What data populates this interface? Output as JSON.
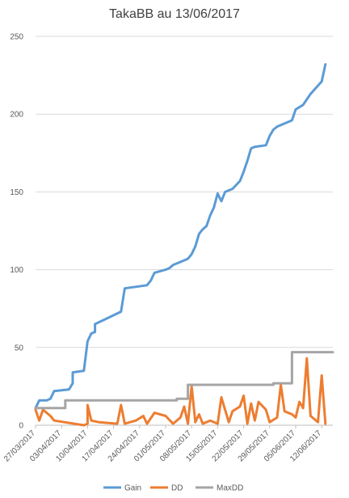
{
  "chart_data": {
    "type": "line",
    "title": "TakaBB au 13/06/2017",
    "xlabel": "",
    "ylabel": "",
    "ylim": [
      0,
      250
    ],
    "y_ticks": [
      0,
      50,
      100,
      150,
      200,
      250
    ],
    "x_range": [
      "2017-03-27",
      "2017-06-15"
    ],
    "x_tick_labels": [
      "27/03/2017",
      "03/04/2017",
      "10/04/2017",
      "17/04/2017",
      "24/04/2017",
      "01/05/2017",
      "08/05/2017",
      "15/05/2017",
      "22/05/2017",
      "29/05/2017",
      "05/06/2017",
      "12/06/2017"
    ],
    "grid": "horizontal",
    "legend_position": "bottom",
    "series": [
      {
        "name": "Gain",
        "color": "#5b9bd5",
        "points": [
          [
            "2017-03-27",
            11
          ],
          [
            "2017-03-28",
            16
          ],
          [
            "2017-03-30",
            16
          ],
          [
            "2017-03-31",
            17
          ],
          [
            "2017-04-01",
            22
          ],
          [
            "2017-04-05",
            23
          ],
          [
            "2017-04-06",
            27
          ],
          [
            "2017-04-06",
            34
          ],
          [
            "2017-04-09",
            35
          ],
          [
            "2017-04-10",
            54
          ],
          [
            "2017-04-11",
            59
          ],
          [
            "2017-04-12",
            60
          ],
          [
            "2017-04-12",
            65
          ],
          [
            "2017-04-19",
            73
          ],
          [
            "2017-04-20",
            88
          ],
          [
            "2017-04-26",
            90
          ],
          [
            "2017-04-27",
            93
          ],
          [
            "2017-04-28",
            98
          ],
          [
            "2017-05-01",
            100
          ],
          [
            "2017-05-02",
            101
          ],
          [
            "2017-05-03",
            103
          ],
          [
            "2017-05-05",
            105
          ],
          [
            "2017-05-07",
            107
          ],
          [
            "2017-05-08",
            110
          ],
          [
            "2017-05-09",
            115
          ],
          [
            "2017-05-10",
            123
          ],
          [
            "2017-05-11",
            126
          ],
          [
            "2017-05-12",
            128
          ],
          [
            "2017-05-13",
            135
          ],
          [
            "2017-05-14",
            140
          ],
          [
            "2017-05-15",
            149
          ],
          [
            "2017-05-16",
            144
          ],
          [
            "2017-05-17",
            150
          ],
          [
            "2017-05-19",
            152
          ],
          [
            "2017-05-21",
            157
          ],
          [
            "2017-05-22",
            163
          ],
          [
            "2017-05-23",
            170
          ],
          [
            "2017-05-24",
            178
          ],
          [
            "2017-05-25",
            179
          ],
          [
            "2017-05-28",
            180
          ],
          [
            "2017-05-29",
            186
          ],
          [
            "2017-05-30",
            190
          ],
          [
            "2017-05-31",
            192
          ],
          [
            "2017-06-04",
            196
          ],
          [
            "2017-06-05",
            203
          ],
          [
            "2017-06-07",
            206
          ],
          [
            "2017-06-09",
            213
          ],
          [
            "2017-06-12",
            221
          ],
          [
            "2017-06-13",
            232
          ]
        ]
      },
      {
        "name": "DD",
        "color": "#ed7d31",
        "points": [
          [
            "2017-03-27",
            10
          ],
          [
            "2017-03-28",
            3
          ],
          [
            "2017-03-29",
            10
          ],
          [
            "2017-03-31",
            6
          ],
          [
            "2017-04-01",
            3
          ],
          [
            "2017-04-09",
            0
          ],
          [
            "2017-04-10",
            1
          ],
          [
            "2017-04-10",
            13
          ],
          [
            "2017-04-11",
            3
          ],
          [
            "2017-04-13",
            2
          ],
          [
            "2017-04-18",
            1
          ],
          [
            "2017-04-19",
            13
          ],
          [
            "2017-04-20",
            1
          ],
          [
            "2017-04-23",
            3
          ],
          [
            "2017-04-25",
            6
          ],
          [
            "2017-04-26",
            1
          ],
          [
            "2017-04-28",
            8
          ],
          [
            "2017-05-01",
            6
          ],
          [
            "2017-05-03",
            1
          ],
          [
            "2017-05-05",
            5
          ],
          [
            "2017-05-06",
            12
          ],
          [
            "2017-05-07",
            1
          ],
          [
            "2017-05-08",
            25
          ],
          [
            "2017-05-09",
            2
          ],
          [
            "2017-05-10",
            7
          ],
          [
            "2017-05-11",
            1
          ],
          [
            "2017-05-13",
            3
          ],
          [
            "2017-05-15",
            1
          ],
          [
            "2017-05-16",
            18
          ],
          [
            "2017-05-17",
            10
          ],
          [
            "2017-05-18",
            2
          ],
          [
            "2017-05-19",
            9
          ],
          [
            "2017-05-21",
            12
          ],
          [
            "2017-05-22",
            19
          ],
          [
            "2017-05-23",
            1
          ],
          [
            "2017-05-24",
            14
          ],
          [
            "2017-05-25",
            3
          ],
          [
            "2017-05-26",
            15
          ],
          [
            "2017-05-28",
            10
          ],
          [
            "2017-05-29",
            2
          ],
          [
            "2017-05-31",
            5
          ],
          [
            "2017-06-01",
            26
          ],
          [
            "2017-06-02",
            9
          ],
          [
            "2017-06-04",
            7
          ],
          [
            "2017-06-05",
            5
          ],
          [
            "2017-06-06",
            15
          ],
          [
            "2017-06-07",
            11
          ],
          [
            "2017-06-08",
            43
          ],
          [
            "2017-06-09",
            6
          ],
          [
            "2017-06-11",
            2
          ],
          [
            "2017-06-12",
            32
          ],
          [
            "2017-06-13",
            1
          ]
        ]
      },
      {
        "name": "MaxDD",
        "color": "#a5a5a5",
        "points": [
          [
            "2017-03-27",
            11
          ],
          [
            "2017-04-04",
            11
          ],
          [
            "2017-04-04",
            16
          ],
          [
            "2017-05-04",
            16
          ],
          [
            "2017-05-04",
            17
          ],
          [
            "2017-05-07",
            17
          ],
          [
            "2017-05-07",
            26
          ],
          [
            "2017-05-30",
            26
          ],
          [
            "2017-05-30",
            27
          ],
          [
            "2017-06-04",
            27
          ],
          [
            "2017-06-04",
            47
          ],
          [
            "2017-06-15",
            47
          ]
        ]
      }
    ]
  }
}
